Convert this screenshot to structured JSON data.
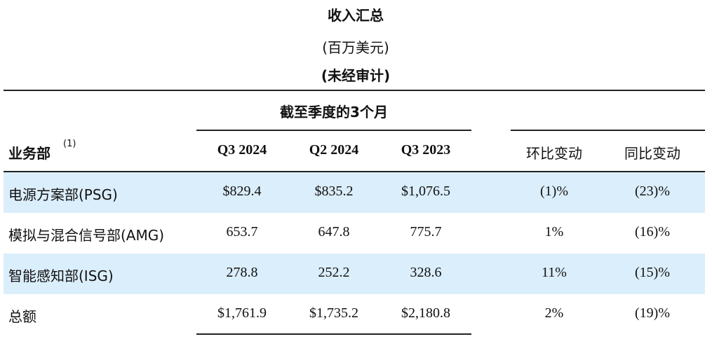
{
  "header": {
    "title": "收入汇总",
    "unit": "(百万美元)",
    "note": "(未经审计)"
  },
  "table": {
    "period_header": "截至季度的3个月",
    "columns": [
      "业务部",
      "Q3 2024",
      "Q2 2024",
      "Q3 2023",
      "环比变动",
      "同比变动"
    ],
    "footnote_marker": "(1)",
    "rows": [
      [
        "电源方案部(PSG)",
        "$829.4",
        "$835.2",
        "$1,076.5",
        "(1)%",
        "(23)%"
      ],
      [
        "模拟与混合信号部(AMG)",
        "653.7",
        "647.8",
        "775.7",
        "1%",
        "(16)%"
      ],
      [
        "智能感知部(ISG)",
        "278.8",
        "252.2",
        "328.6",
        "11%",
        "(15)%"
      ],
      [
        "总额",
        "$1,761.9",
        "$1,735.2",
        "$2,180.8",
        "2%",
        "(19)%"
      ]
    ]
  }
}
